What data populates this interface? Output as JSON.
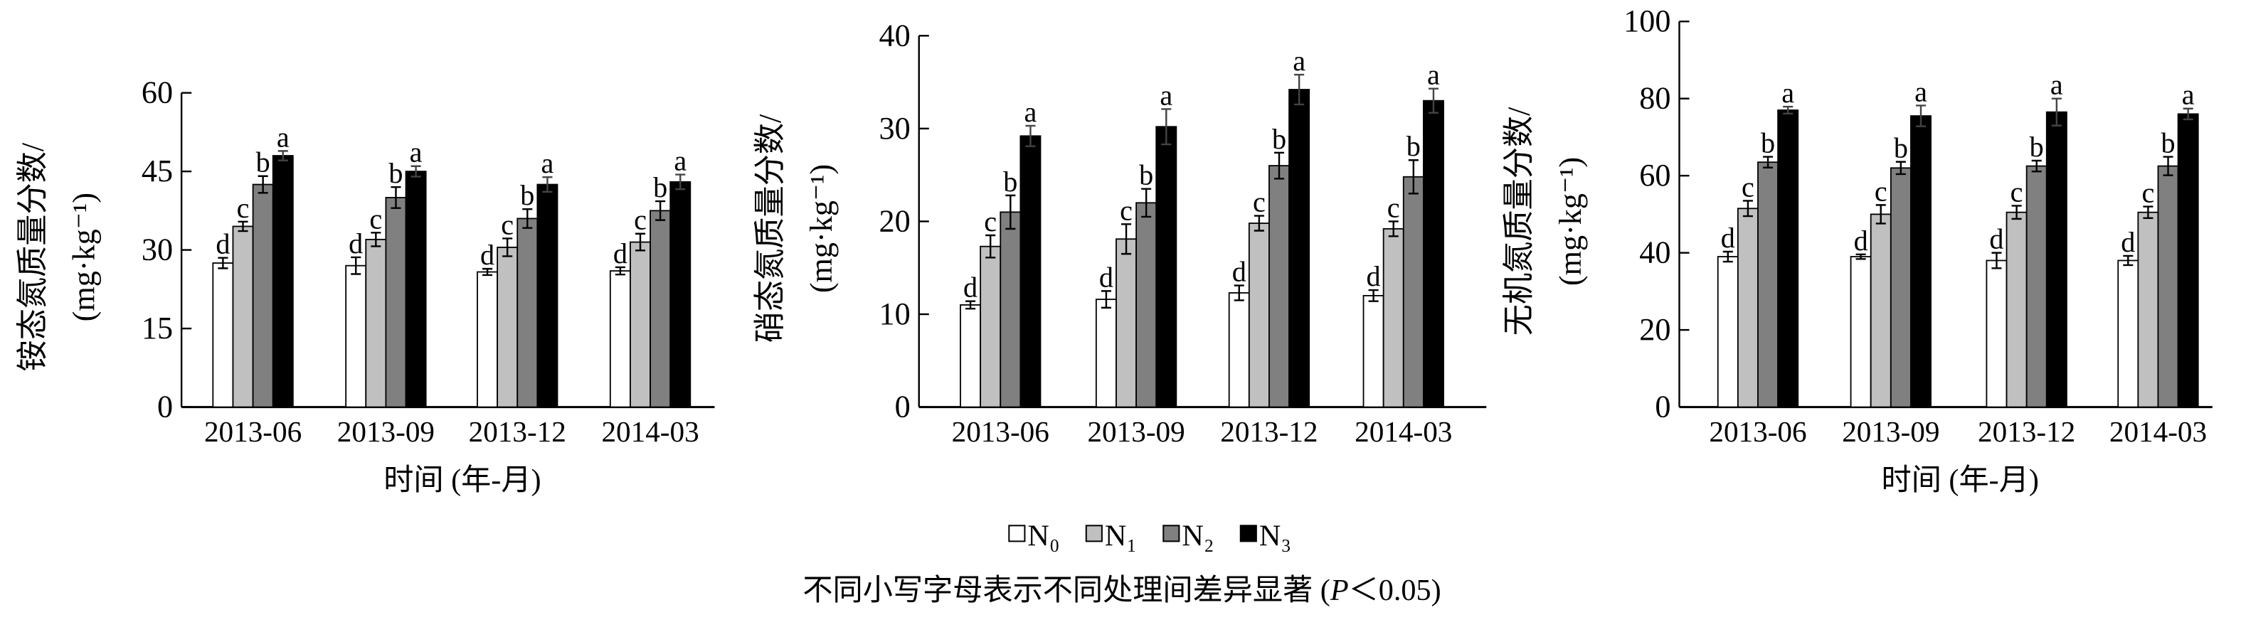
{
  "chart_data": [
    {
      "type": "bar",
      "ylabel_line1": "铵态氮质量分数/",
      "ylabel_line2": "(mg·kg⁻¹)",
      "xlabel": "时间 (年-月)",
      "categories": [
        "2013-06",
        "2013-09",
        "2013-12",
        "2014-03"
      ],
      "ylim": [
        0,
        60
      ],
      "yticks": [
        "0",
        "15",
        "30",
        "45",
        "60"
      ],
      "series": [
        {
          "name": "N₀",
          "values": [
            27.5,
            27.0,
            25.8,
            26.0
          ],
          "errors": [
            1.0,
            1.6,
            0.6,
            0.7
          ],
          "letters": [
            "d",
            "d",
            "d",
            "d"
          ]
        },
        {
          "name": "N₁",
          "values": [
            34.5,
            32.0,
            30.5,
            31.5
          ],
          "errors": [
            0.9,
            1.3,
            1.7,
            1.6
          ],
          "letters": [
            "c",
            "c",
            "c",
            "c"
          ]
        },
        {
          "name": "N₂",
          "values": [
            42.5,
            40.0,
            36.0,
            37.5
          ],
          "errors": [
            1.6,
            2.0,
            1.8,
            1.8
          ],
          "letters": [
            "b",
            "b",
            "b",
            "b"
          ]
        },
        {
          "name": "N₃",
          "values": [
            48.0,
            45.0,
            42.5,
            43.0
          ],
          "errors": [
            0.9,
            1.0,
            1.4,
            1.4
          ],
          "letters": [
            "a",
            "a",
            "a",
            "a"
          ]
        }
      ]
    },
    {
      "type": "bar",
      "ylabel_line1": "硝态氮质量分数/",
      "ylabel_line2": "(mg·kg⁻¹)",
      "xlabel": "",
      "categories": [
        "2013-06",
        "2013-09",
        "2013-12",
        "2014-03"
      ],
      "ylim": [
        0,
        40
      ],
      "yticks": [
        "0",
        "10",
        "20",
        "30",
        "40"
      ],
      "series": [
        {
          "name": "N₀",
          "values": [
            11.0,
            11.6,
            12.3,
            12.0
          ],
          "errors": [
            0.4,
            0.9,
            0.8,
            0.6
          ],
          "letters": [
            "d",
            "d",
            "d",
            "d"
          ]
        },
        {
          "name": "N₁",
          "values": [
            17.3,
            18.1,
            19.8,
            19.2
          ],
          "errors": [
            1.2,
            1.6,
            0.8,
            0.8
          ],
          "letters": [
            "c",
            "c",
            "c",
            "c"
          ]
        },
        {
          "name": "N₂",
          "values": [
            21.0,
            22.0,
            26.0,
            24.8
          ],
          "errors": [
            1.8,
            1.5,
            1.4,
            1.8
          ],
          "letters": [
            "b",
            "b",
            "b",
            "b"
          ]
        },
        {
          "name": "N₃",
          "values": [
            29.2,
            30.2,
            34.2,
            33.0
          ],
          "errors": [
            1.1,
            1.9,
            1.6,
            1.3
          ],
          "letters": [
            "a",
            "a",
            "a",
            "a"
          ]
        }
      ]
    },
    {
      "type": "bar",
      "ylabel_line1": "无机氮质量分数/",
      "ylabel_line2": "(mg·kg⁻¹)",
      "xlabel": "时间 (年-月)",
      "categories": [
        "2013-06",
        "2013-09",
        "2013-12",
        "2014-03"
      ],
      "ylim": [
        0,
        100
      ],
      "yticks": [
        "0",
        "20",
        "40",
        "60",
        "80",
        "100"
      ],
      "series": [
        {
          "name": "N₀",
          "values": [
            39.0,
            39.0,
            38.0,
            38.0
          ],
          "errors": [
            1.3,
            0.6,
            2.0,
            1.2
          ],
          "letters": [
            "d",
            "d",
            "d",
            "d"
          ]
        },
        {
          "name": "N₁",
          "values": [
            51.5,
            50.0,
            50.5,
            50.5
          ],
          "errors": [
            2.0,
            2.4,
            1.7,
            1.5
          ],
          "letters": [
            "c",
            "c",
            "c",
            "c"
          ]
        },
        {
          "name": "N₂",
          "values": [
            63.5,
            62.0,
            62.5,
            62.5
          ],
          "errors": [
            1.4,
            1.6,
            1.4,
            2.4
          ],
          "letters": [
            "b",
            "b",
            "b",
            "b"
          ]
        },
        {
          "name": "N₃",
          "values": [
            77.0,
            75.5,
            76.5,
            76.0
          ],
          "errors": [
            0.9,
            2.7,
            3.5,
            1.4
          ],
          "letters": [
            "a",
            "a",
            "a",
            "a"
          ]
        }
      ]
    }
  ],
  "legend": {
    "placement": "bottom-center",
    "items": [
      {
        "label": "N₀",
        "color": "#ffffff"
      },
      {
        "label": "N₁",
        "color": "#c0c0c0"
      },
      {
        "label": "N₂",
        "color": "#808080"
      },
      {
        "label": "N₃",
        "color": "#000000"
      }
    ]
  },
  "footnote": {
    "prefix": "不同小写字母表示不同处理间差异显著 (",
    "italic": "P",
    "suffix": "＜0.05)"
  }
}
